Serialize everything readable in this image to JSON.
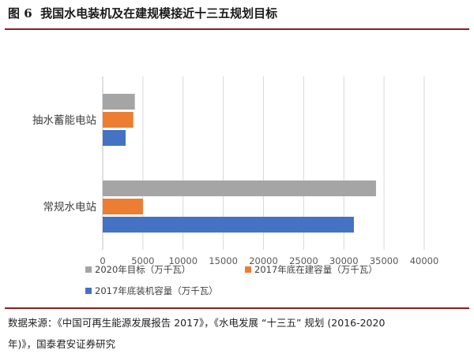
{
  "figure": {
    "number_label": "图 6",
    "title": "我国水电装机及在建规模接近十三五规划目标"
  },
  "chart_data": {
    "type": "bar",
    "orientation": "horizontal",
    "categories": [
      "抽水蓄能电站",
      "常规水电站"
    ],
    "series": [
      {
        "name": "2020年目标（万千瓦）",
        "color": "#a5a5a5",
        "values": [
          4000,
          34000
        ]
      },
      {
        "name": "2017年底在建容量（万千瓦）",
        "color": "#ed7d31",
        "values": [
          3800,
          5000
        ]
      },
      {
        "name": "2017年底装机容量（万千瓦）",
        "color": "#4472c4",
        "values": [
          2850,
          31250
        ]
      }
    ],
    "xlim": [
      0,
      40000
    ],
    "xticks": [
      "0",
      "5000",
      "10000",
      "15000",
      "20000",
      "25000",
      "30000",
      "35000",
      "40000"
    ],
    "grid": true,
    "legend_position": "bottom"
  },
  "source": {
    "line1": "数据来源：《中国可再生能源发展报告 2017》，《水电发展 “十三五” 规划 (2016-2020",
    "line2": "年)》，国泰君安证券研究"
  }
}
